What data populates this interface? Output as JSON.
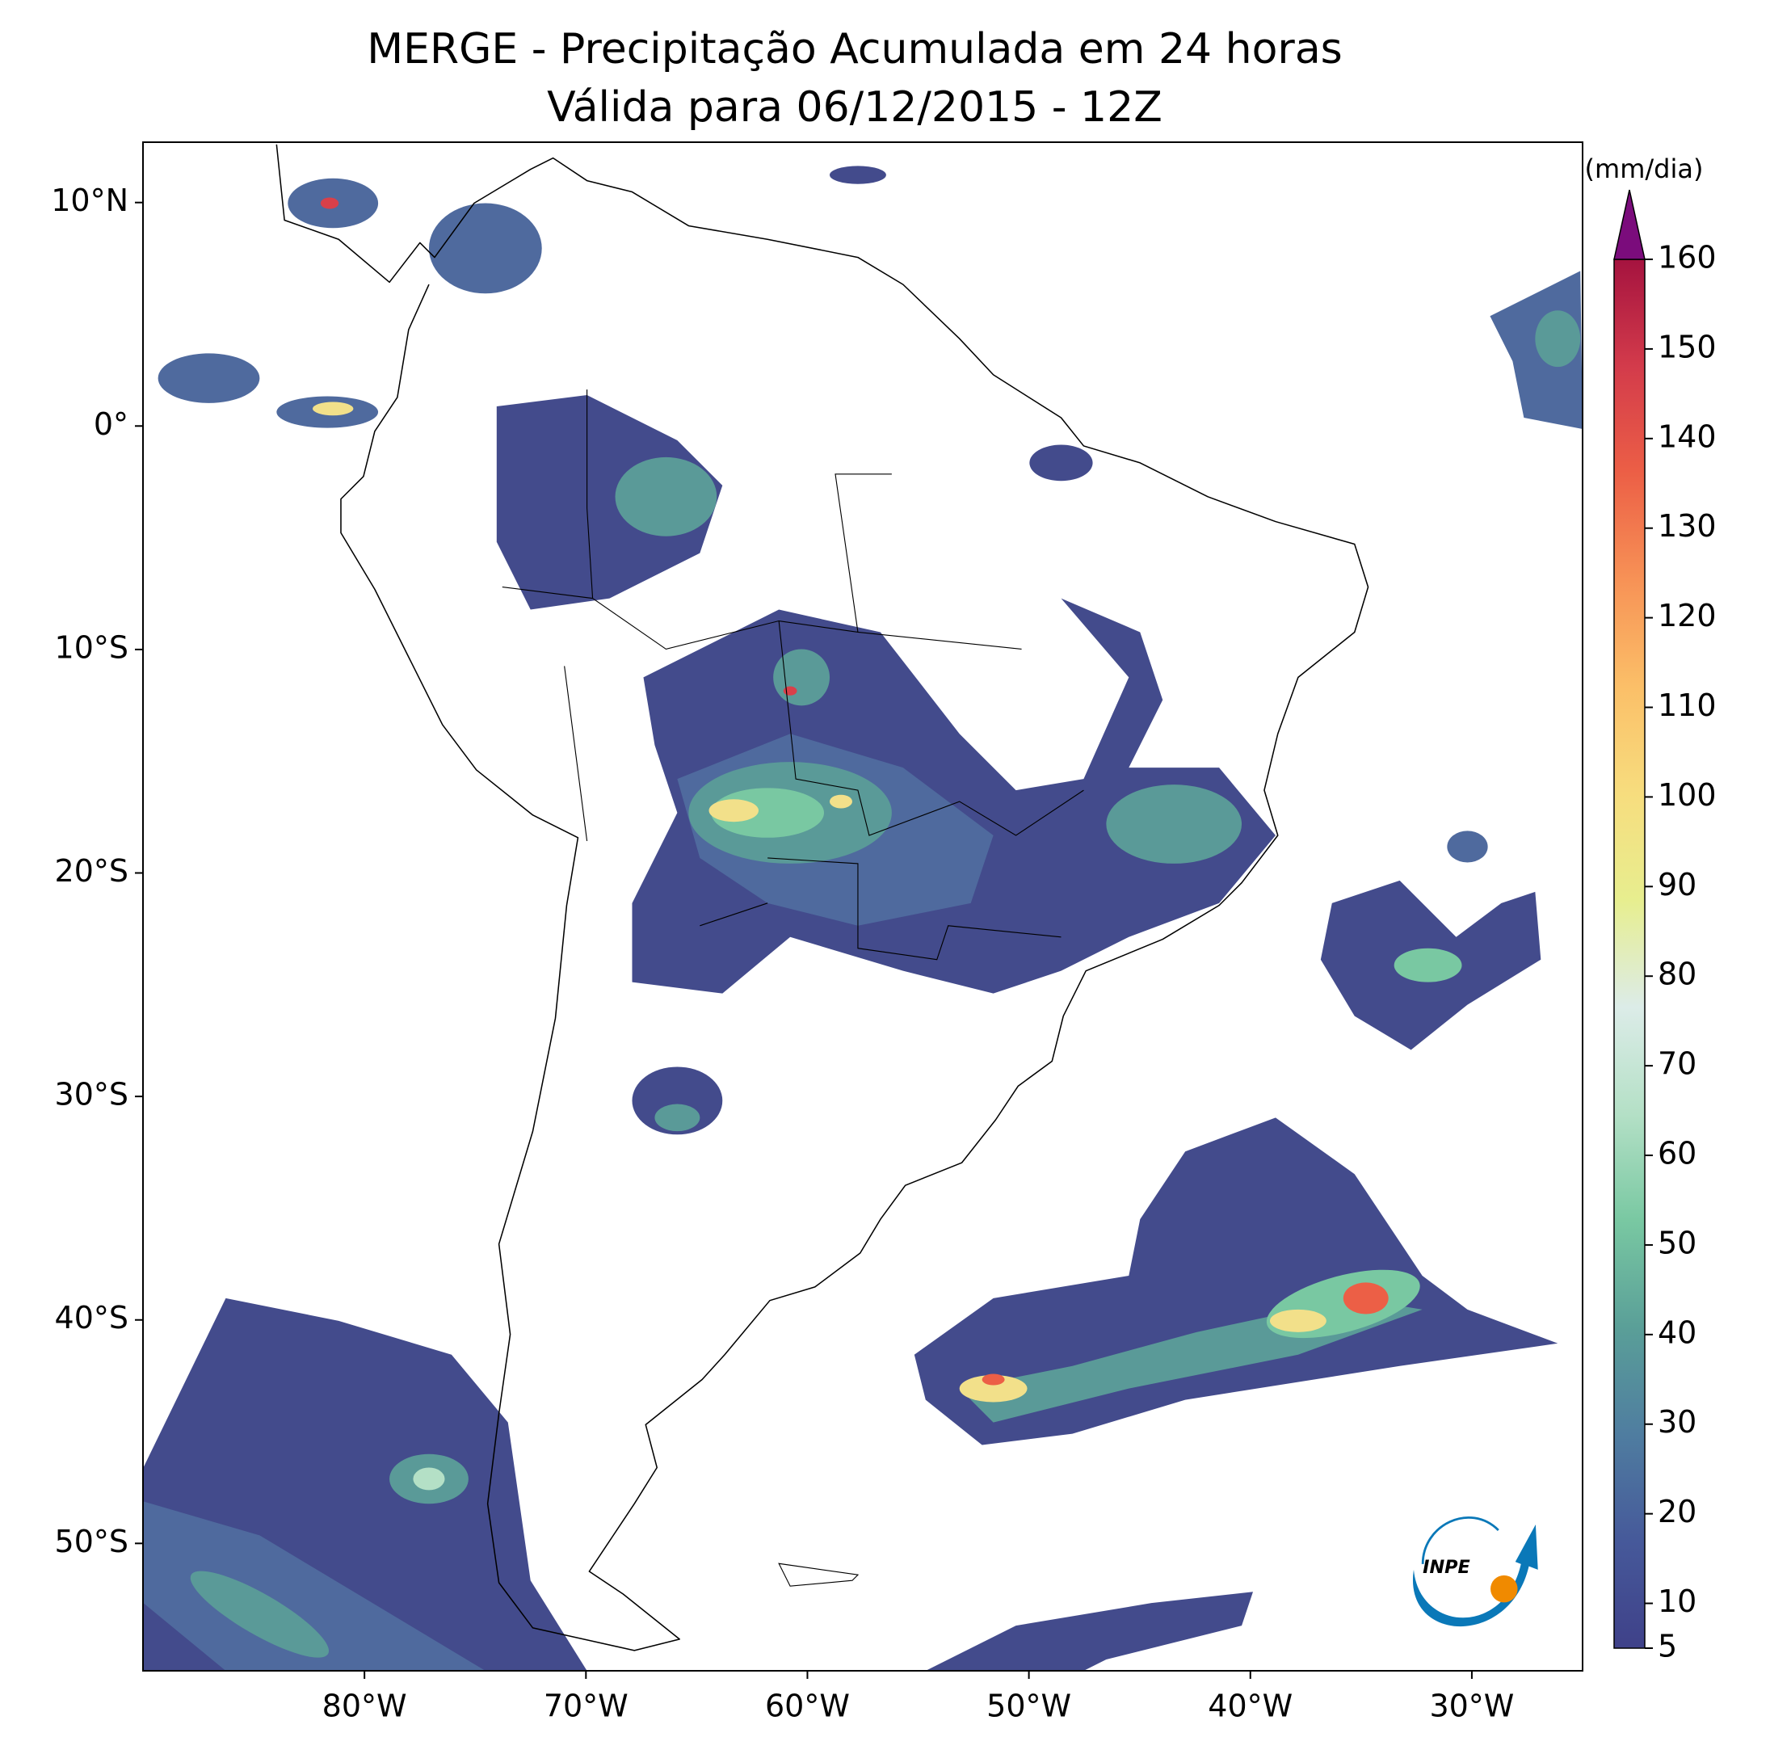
{
  "title": "MERGE - Precipitação Acumulada em 24 horas",
  "subtitle": "Válida para 06/12/2015 - 12Z",
  "map": {
    "lon_range": [
      -90,
      -25
    ],
    "lat_range": [
      -55.7,
      12.7
    ],
    "lon_ticks": [
      {
        "value": -80,
        "label": "80°W"
      },
      {
        "value": -70,
        "label": "70°W"
      },
      {
        "value": -60,
        "label": "60°W"
      },
      {
        "value": -50,
        "label": "50°W"
      },
      {
        "value": -40,
        "label": "40°W"
      },
      {
        "value": -30,
        "label": "30°W"
      }
    ],
    "lat_ticks": [
      {
        "value": 10,
        "label": "10°N"
      },
      {
        "value": 0,
        "label": "0°"
      },
      {
        "value": -10,
        "label": "10°S"
      },
      {
        "value": -20,
        "label": "20°S"
      },
      {
        "value": -30,
        "label": "30°S"
      },
      {
        "value": -40,
        "label": "40°S"
      },
      {
        "value": -50,
        "label": "50°S"
      }
    ]
  },
  "colorbar": {
    "label": "(mm/dia)",
    "range": [
      5,
      160
    ],
    "ticks": [
      5,
      10,
      20,
      30,
      40,
      50,
      60,
      70,
      80,
      90,
      100,
      110,
      120,
      130,
      140,
      150,
      160
    ],
    "colors": [
      "#3f4189",
      "#46599a",
      "#4f7da0",
      "#5a9f98",
      "#79c8a2",
      "#b4e0c6",
      "#dcece8",
      "#e7ee8f",
      "#f7dd7e",
      "#fbbf68",
      "#f79256",
      "#ec5f46",
      "#d33b4b",
      "#a5133f"
    ],
    "over_color": "#7b0c7c"
  },
  "logo": "INPE"
}
